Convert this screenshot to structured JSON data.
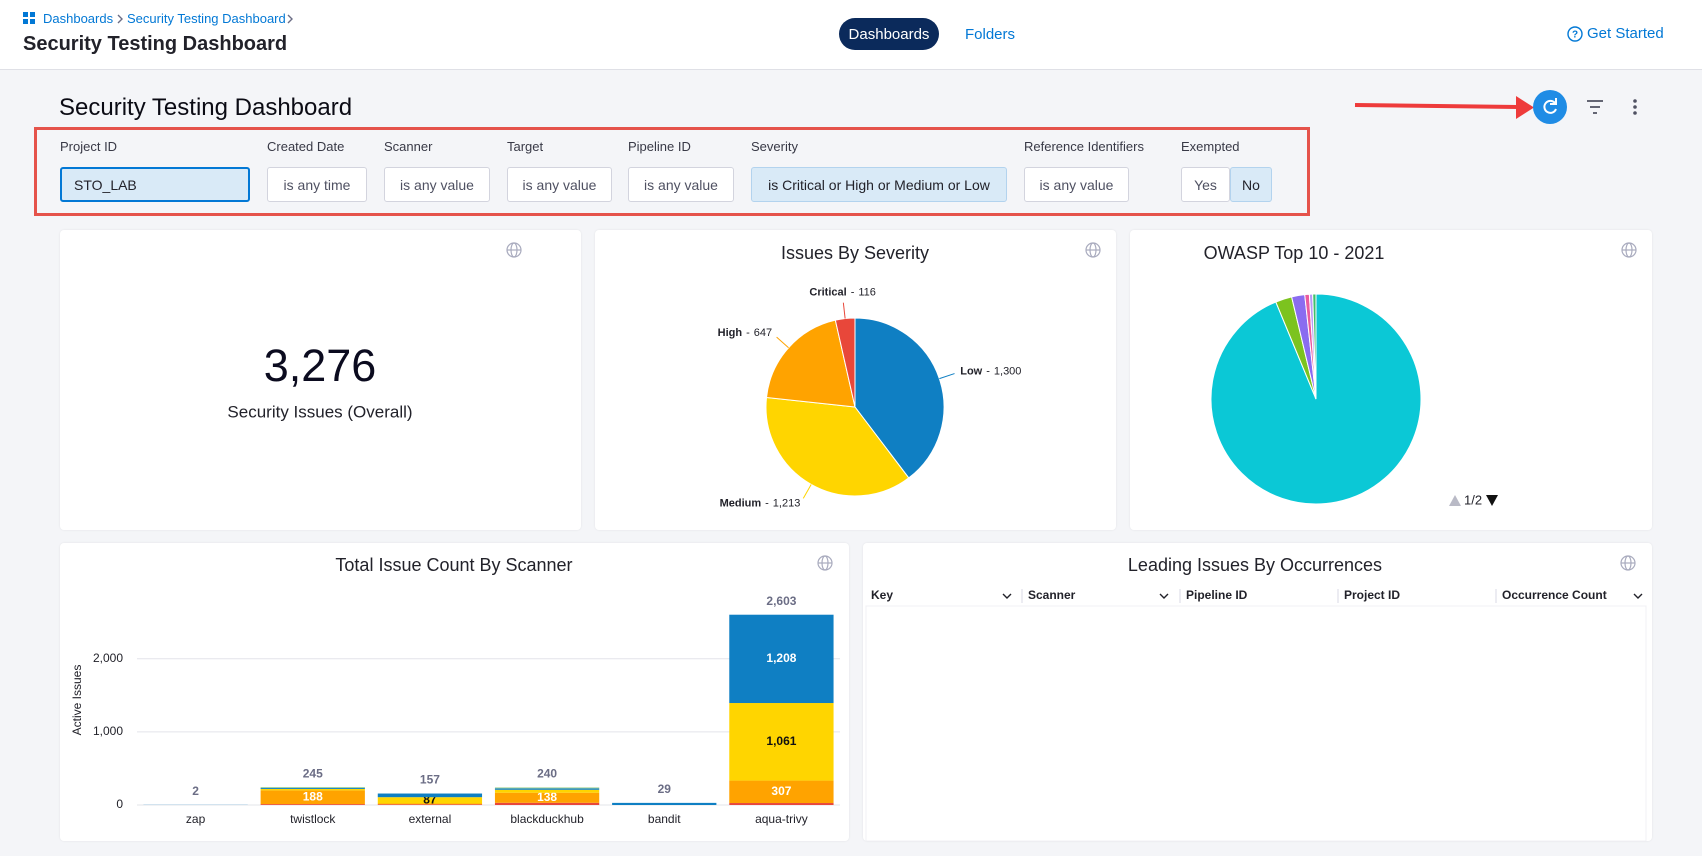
{
  "breadcrumbs": [
    "Dashboards",
    "Security Testing Dashboard"
  ],
  "page_title": "Security Testing Dashboard",
  "tabs": [
    "Dashboards",
    "Folders"
  ],
  "get_started": "Get Started",
  "dashboard_title": "Security Testing Dashboard",
  "filters": [
    {
      "label": "Project ID",
      "value": "STO_LAB",
      "link": true,
      "highlight": true,
      "editable": true
    },
    {
      "label": "Created Date",
      "value": "is any time",
      "link": false
    },
    {
      "label": "Scanner",
      "value": "is any value",
      "link": true
    },
    {
      "label": "Target",
      "value": "is any value",
      "link": true
    },
    {
      "label": "Pipeline ID",
      "value": "is any value",
      "link": true
    },
    {
      "label": "Severity",
      "value": "is Critical or High or Medium or Low",
      "link": false,
      "highlight": true
    },
    {
      "label": "Reference Identifiers",
      "value": "is any value",
      "link": true
    },
    {
      "label": "Exempted",
      "options": [
        "Yes",
        "No"
      ],
      "selected": 1,
      "link": false
    }
  ],
  "kpi": {
    "value": "3,276",
    "label": "Security Issues (Overall)"
  },
  "severity_pie": {
    "type": "pie",
    "title": "Issues By Severity",
    "categories": [
      "Low",
      "Medium",
      "High",
      "Critical"
    ],
    "values": [
      1300,
      1213,
      647,
      116
    ],
    "value_labels": [
      "1,300",
      "1,213",
      "647",
      "116"
    ],
    "separator": "-",
    "colors": [
      "#0f7fc3",
      "#ffd500",
      "#ffa300",
      "#e8473a"
    ]
  },
  "owasp_pie": {
    "type": "pie",
    "title": "OWASP Top 10 - 2021",
    "values": [
      93,
      2.5,
      2,
      0.7,
      0.5,
      0.5
    ],
    "colors": [
      "#0bc8d6",
      "#7cc31f",
      "#8a6cf0",
      "#e95b9e",
      "#b79cf5",
      "#3fbf6b"
    ],
    "pager": "1/2"
  },
  "scanner_bar": {
    "type": "bar",
    "title": "Total Issue Count By Scanner",
    "y_label": "Active Issues",
    "categories": [
      "zap",
      "twistlock",
      "external",
      "blackduckhub",
      "bandit",
      "aqua-trivy"
    ],
    "series": [
      {
        "color": "#e8473a",
        "values": [
          0,
          12,
          10,
          30,
          0,
          27
        ]
      },
      {
        "color": "#ffa300",
        "label_color": "#ffffff",
        "values": [
          0,
          188,
          10,
          138,
          0,
          307
        ],
        "value_labels": [
          null,
          "188",
          null,
          "138",
          null,
          "307"
        ]
      },
      {
        "color": "#ffd500",
        "label_color": "#111111",
        "values": [
          0,
          20,
          87,
          40,
          0,
          1061
        ],
        "value_labels": [
          null,
          null,
          "87",
          null,
          null,
          "1,061"
        ]
      },
      {
        "color": "#0f7fc3",
        "label_color": "#ffffff",
        "values": [
          2,
          15,
          50,
          20,
          29,
          1208
        ],
        "value_labels": [
          null,
          null,
          null,
          null,
          null,
          "1,208"
        ]
      },
      {
        "color": "#9ccf8a",
        "values": [
          0,
          10,
          0,
          12,
          0,
          0
        ]
      }
    ],
    "totals": [
      2,
      245,
      157,
      240,
      29,
      2603
    ],
    "total_labels": [
      "2",
      "245",
      "157",
      "240",
      "29",
      "2,603"
    ],
    "ylim": [
      0,
      2900
    ],
    "yticks": [
      0,
      {
        "value": 1000,
        "label": "1,000"
      },
      {
        "value": 2000,
        "label": "2,000"
      }
    ],
    "grid": true
  },
  "issues_table": {
    "title": "Leading Issues By Occurrences",
    "columns": [
      "Key",
      "Scanner",
      "Pipeline ID",
      "Project ID",
      "Occurrence Count"
    ],
    "sortable": [
      true,
      true,
      false,
      false,
      true
    ]
  }
}
